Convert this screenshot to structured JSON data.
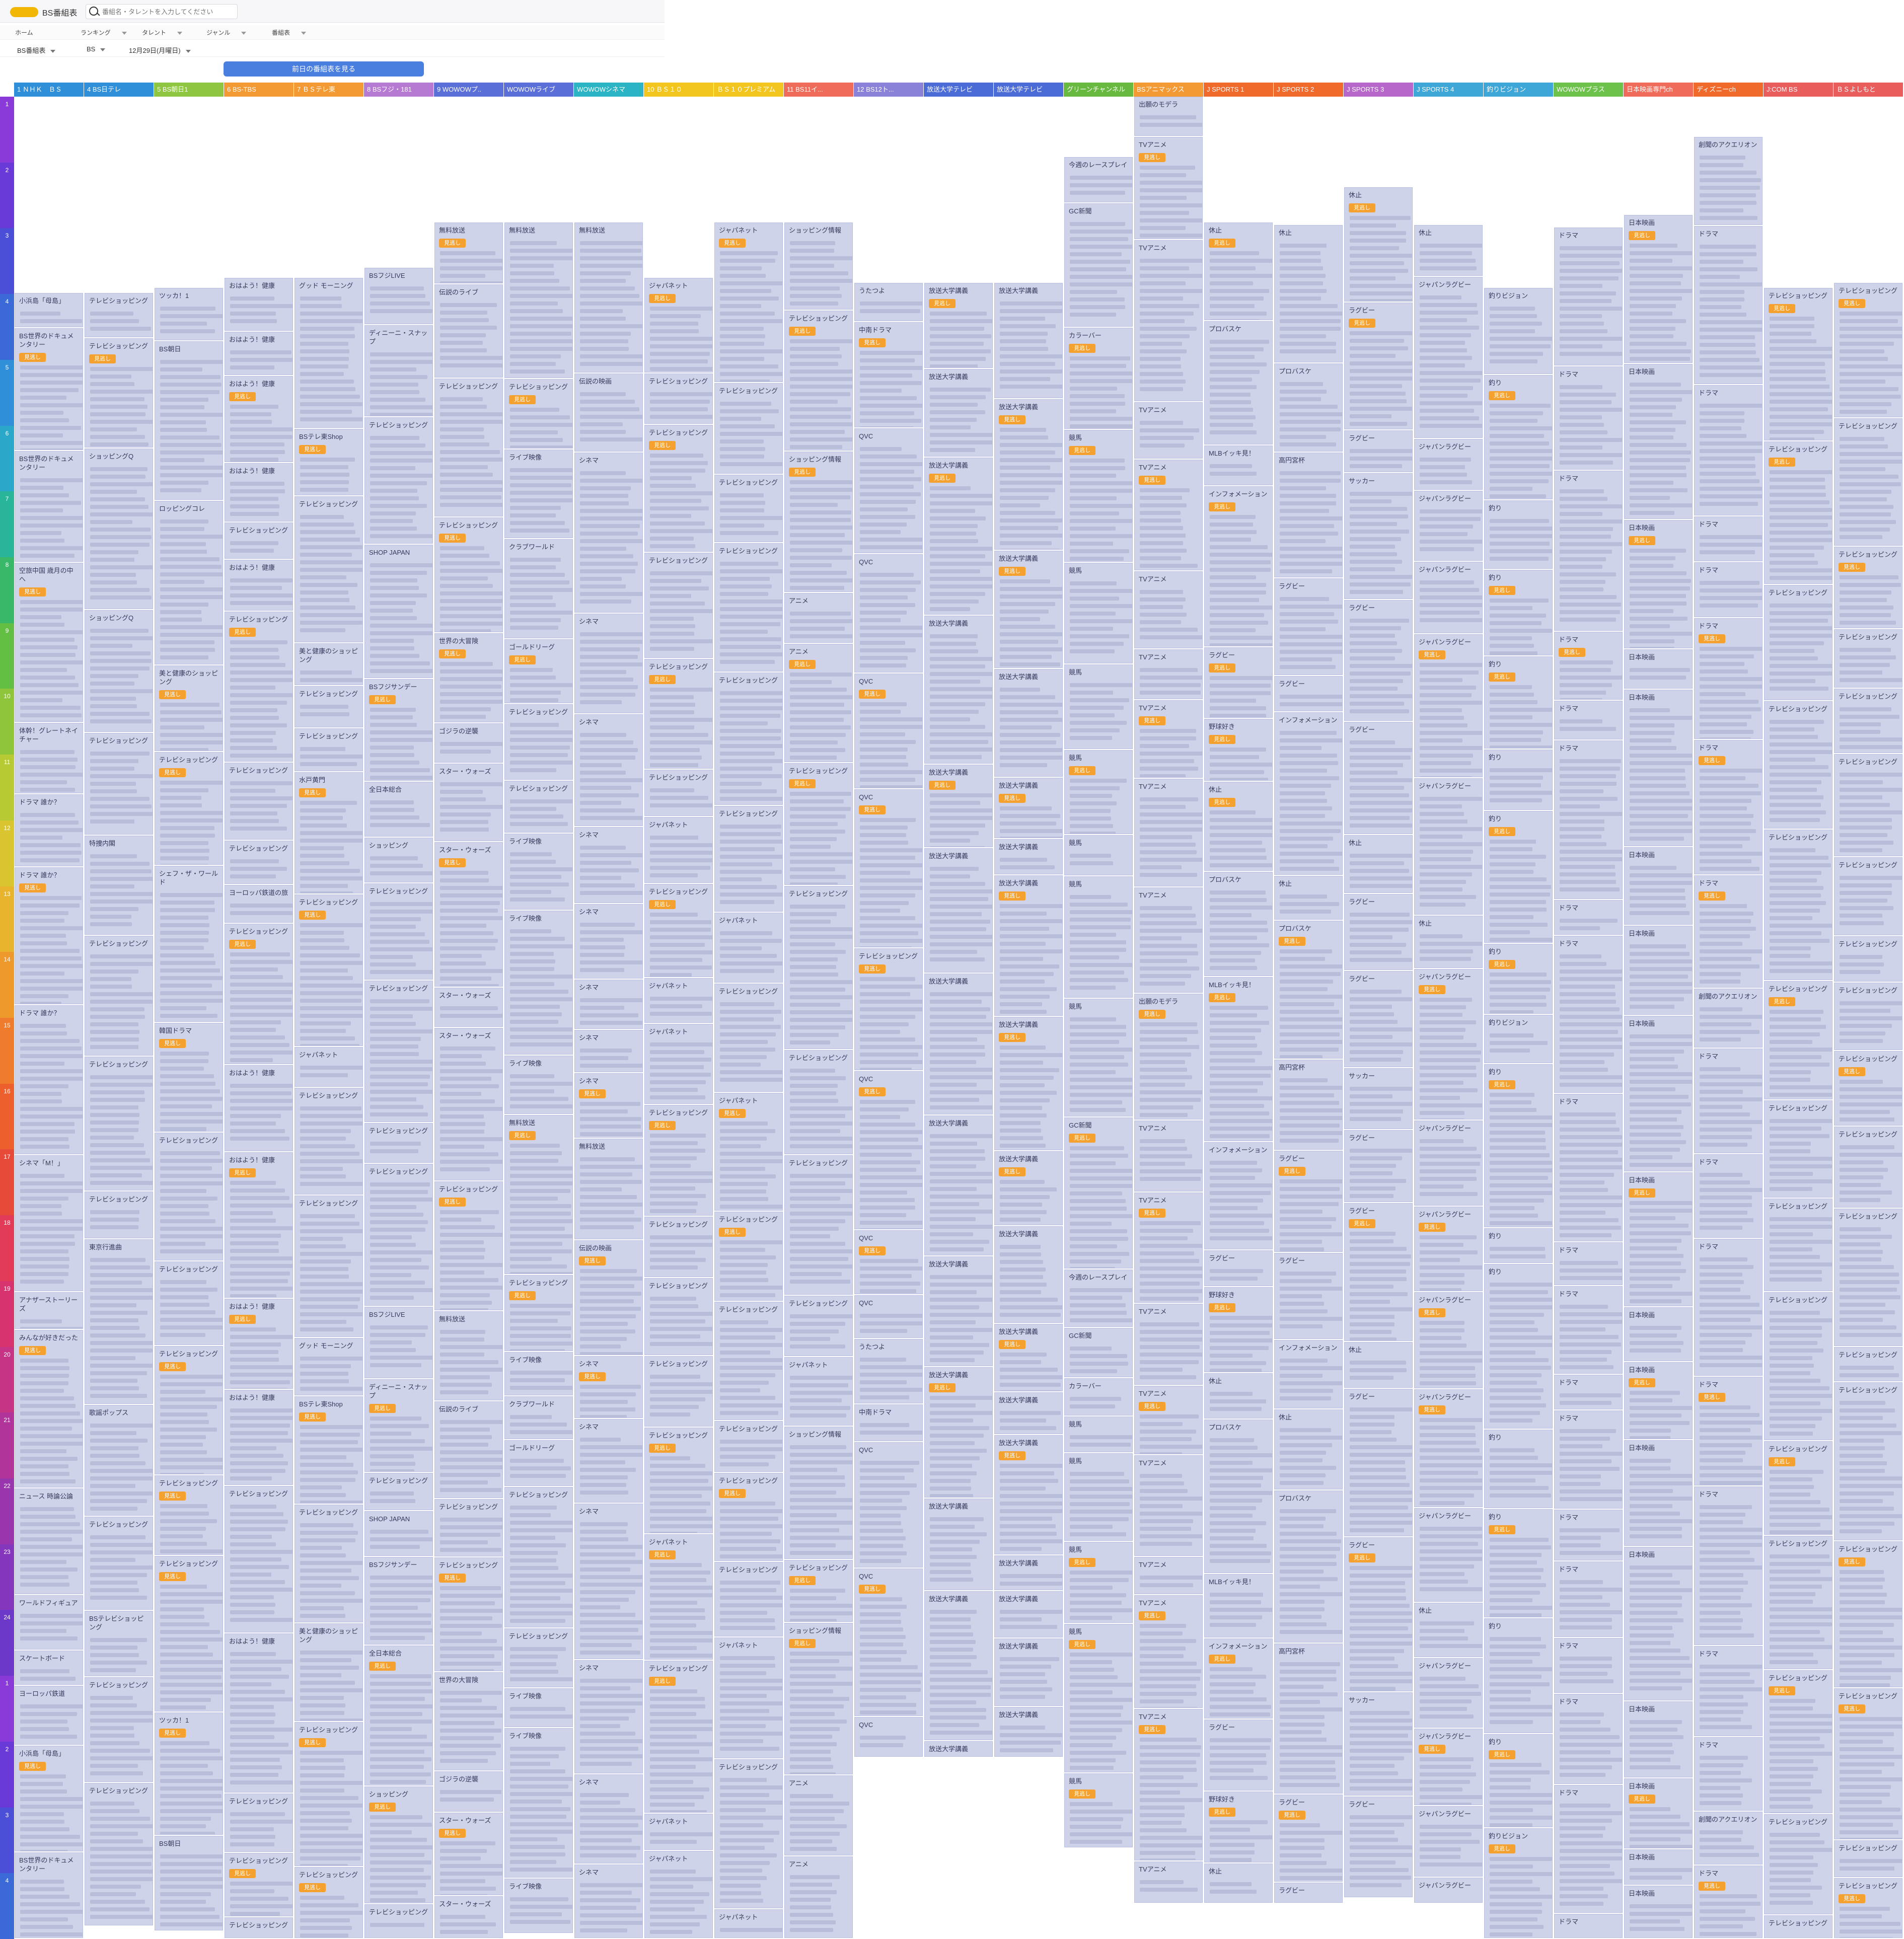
{
  "header": {
    "brand": "BS番組表",
    "search_placeholder": "番組名・タレントを入力してください"
  },
  "nav": [
    "ホーム",
    "ランキング",
    "タレント",
    "ジャンル",
    "番組表"
  ],
  "filters": {
    "type": "BS番組表",
    "band": "BS",
    "date": "12月29日(月曜日)"
  },
  "prev_button": "前日の番組表を見る",
  "colors": {
    "program_bg": "#cfd3ea",
    "accent": "#4a7fdf",
    "tag": "#f4a12f"
  },
  "channels": [
    {
      "label": "1 ＮＨＫ　ＢＳ",
      "color": "#2f8fd8"
    },
    {
      "label": "4 BS日テレ",
      "color": "#2f8fd8"
    },
    {
      "label": "5 BS朝日1",
      "color": "#8ec641"
    },
    {
      "label": "6 BS-TBS",
      "color": "#f39a34"
    },
    {
      "label": "7 ＢＳテレ東",
      "color": "#f39a34"
    },
    {
      "label": "8 BSフジ・181",
      "color": "#b67ad3"
    },
    {
      "label": "9 WOWOWプ..",
      "color": "#5b6fd8"
    },
    {
      "label": "WOWOWライブ",
      "color": "#5b6fd8"
    },
    {
      "label": "WOWOWシネマ",
      "color": "#2bb5c4"
    },
    {
      "label": "10 ＢＳ１０",
      "color": "#f2c61e"
    },
    {
      "label": "ＢＳ１０プレミアム",
      "color": "#f2c61e"
    },
    {
      "label": "11 BS11イ...",
      "color": "#ef6c5a"
    },
    {
      "label": "12 BS12ト...",
      "color": "#8a82d8"
    },
    {
      "label": "放送大学テレビ",
      "color": "#4b6bd6"
    },
    {
      "label": "放送大学テレビ",
      "color": "#4b6bd6"
    },
    {
      "label": "グリーンチャンネル",
      "color": "#67b93f"
    },
    {
      "label": "BSアニマックス",
      "color": "#f39a34"
    },
    {
      "label": "J SPORTS 1",
      "color": "#f06a2c"
    },
    {
      "label": "J SPORTS 2",
      "color": "#f06a2c"
    },
    {
      "label": "J SPORTS 3",
      "color": "#b667c9"
    },
    {
      "label": "J SPORTS 4",
      "color": "#3fa6d8"
    },
    {
      "label": "釣りビジョン",
      "color": "#3fa6d8"
    },
    {
      "label": "WOWOWプラス",
      "color": "#6cc24a"
    },
    {
      "label": "日本映画専門ch",
      "color": "#ef6c5a"
    },
    {
      "label": "ディズニーch",
      "color": "#f06a2c"
    },
    {
      "label": "J:COM BS",
      "color": "#ea5d5d"
    },
    {
      "label": "ＢＳよしもと",
      "color": "#ea5d5d"
    }
  ],
  "hours": [
    "1",
    "2",
    "3",
    "4",
    "5",
    "6",
    "7",
    "8",
    "9",
    "10",
    "11",
    "12",
    "13",
    "14",
    "15",
    "16",
    "17",
    "18",
    "19",
    "20",
    "21",
    "22",
    "23",
    "24",
    "1",
    "2",
    "3",
    "4"
  ],
  "column_programs": [
    [
      "小浜島「母島」",
      "BS世界のドキュメンタリー",
      "BS世界のドキュメンタリー",
      "空旅中国 歳月の中へ",
      "体幹！グレートネイチャー",
      "ドラマ 誰か？",
      "ドラマ 誰か？",
      "ドラマ 誰か？",
      "シネマ「M！」",
      "アナザーストーリーズ",
      "みんなが好きだった",
      "ニュース 時論公論",
      "ワールドフィギュア",
      "スケートボード",
      "ヨーロッパ鉄道"
    ],
    [
      "テレビショッピング",
      "テレビショッピング",
      "ショッピングQ",
      "ショッピングQ",
      "テレビショッピング",
      "特捜内閣",
      "テレビショッピング",
      "テレビショッピング",
      "テレビショッピング",
      "東京行進曲",
      "歌謡ポップス",
      "テレビショッピング",
      "BSテレビショッピング"
    ],
    [
      "ツッカ！1",
      "BS朝日",
      "ロッピングコレ",
      "美と健康のショッピング",
      "テレビショッピング",
      "シェフ・ザ・ワールド",
      "韓国ドラマ",
      "テレビショッピング",
      "テレビショッピング",
      "テレビショッピング",
      "テレビショッピング",
      "テレビショッピング"
    ],
    [
      "おはよう！健康",
      "おはよう！健康",
      "おはよう！健康",
      "おはよう！健康",
      "テレビショッピング",
      "おはよう！健康",
      "テレビショッピング",
      "テレビショッピング",
      "テレビショッピング",
      "ヨーロッパ鉄道の旅",
      "テレビショッピング"
    ],
    [
      "グッド モーニング",
      "BSテレ東Shop",
      "テレビショッピング",
      "美と健康のショッピング",
      "テレビショッピング",
      "テレビショッピング",
      "水戸黄門",
      "テレビショッピング",
      "ジャパネット",
      "テレビショッピング",
      "テレビショッピング"
    ],
    [
      "BSフジLIVE",
      "ディニーニ・スナップ",
      "テレビショッピング",
      "SHOP JAPAN",
      "BSフジサンデー",
      "全日本総合",
      "ショッピング",
      "テレビショッピング",
      "テレビショッピング",
      "テレビショッピング",
      "テレビショッピング"
    ],
    [
      "無料放送",
      "伝説のライブ",
      "テレビショッピング",
      "テレビショッピング",
      "世界の大冒険",
      "ゴジラの逆襲",
      "スター・ウォーズ",
      "スター・ウォーズ",
      "スター・ウォーズ",
      "スター・ウォーズ",
      "テレビショッピング"
    ],
    [
      "無料放送",
      "テレビショッピング",
      "ライブ映像",
      "クラブワールド",
      "ゴールドリーグ",
      "テレビショッピング",
      "テレビショッピング",
      "ライブ映像",
      "ライブ映像",
      "ライブ映像"
    ],
    [
      "無料放送",
      "伝説の映画",
      "シネマ",
      "シネマ",
      "シネマ",
      "シネマ",
      "シネマ",
      "シネマ",
      "シネマ",
      "シネマ"
    ],
    [
      "ジャパネット",
      "テレビショッピング",
      "テレビショッピング",
      "テレビショッピング",
      "テレビショッピング",
      "テレビショッピング",
      "ジャパネット",
      "テレビショッピング",
      "ジャパネット"
    ],
    [
      "ジャパネット",
      "テレビショッピング",
      "テレビショッピング",
      "テレビショッピング",
      "テレビショッピング",
      "テレビショッピング",
      "ジャパネット",
      "テレビショッピング"
    ],
    [
      "ショッピング情報",
      "テレビショッピング",
      "ショッピング情報",
      "アニメ",
      "アニメ",
      "テレビショッピング",
      "テレビショッピング",
      "テレビショッピング",
      "テレビショッピング",
      "テレビショッピング",
      "ジャパネット"
    ],
    [
      "うたつよ",
      "中南ドラマ",
      "QVC",
      "QVC",
      "QVC",
      "QVC",
      "テレビショッピング",
      "QVC",
      "QVC",
      "QVC"
    ],
    [
      "放送大学講義",
      "放送大学講義",
      "放送大学講義",
      "放送大学講義",
      "放送大学講義",
      "放送大学講義",
      "放送大学講義",
      "放送大学講義",
      "放送大学講義"
    ],
    [
      "放送大学講義",
      "放送大学講義",
      "放送大学講義",
      "放送大学講義",
      "放送大学講義",
      "放送大学講義",
      "放送大学講義",
      "放送大学講義"
    ],
    [
      "今週のレースプレイ",
      "GC新聞",
      "カラーバー",
      "競馬",
      "競馬",
      "競馬",
      "競馬",
      "競馬",
      "競馬",
      "競馬",
      "GC新聞"
    ],
    [
      "出願のモデラ",
      "TVアニメ",
      "TVアニメ",
      "TVアニメ",
      "TVアニメ",
      "TVアニメ",
      "TVアニメ",
      "TVアニメ",
      "TVアニメ",
      "TVアニメ"
    ],
    [
      "休止",
      "プロバスケ",
      "MLBイッキ見！",
      "インフォメーション",
      "ラグビー",
      "野球好き"
    ],
    [
      "休止",
      "プロバスケ",
      "高円宮杯",
      "ラグビー",
      "ラグビー",
      "インフォメーション"
    ],
    [
      "休止",
      "ラグビー",
      "ラグビー",
      "サッカー",
      "ラグビー",
      "ラグビー"
    ],
    [
      "休止",
      "ジャパンラグビー",
      "ジャパンラグビー",
      "ジャパンラグビー",
      "ジャパンラグビー",
      "ジャパンラグビー",
      "ジャパンラグビー"
    ],
    [
      "釣りビジョン",
      "釣り",
      "釣り",
      "釣り",
      "釣り",
      "釣り",
      "釣り",
      "釣り"
    ],
    [
      "ドラマ",
      "ドラマ",
      "ドラマ",
      "ドラマ",
      "ドラマ",
      "ドラマ",
      "ドラマ",
      "ドラマ"
    ],
    [
      "日本映画",
      "日本映画",
      "日本映画",
      "日本映画",
      "日本映画",
      "日本映画",
      "日本映画"
    ],
    [
      "創聞のアクエリオン",
      "ドラマ",
      "ドラマ",
      "ドラマ",
      "ドラマ",
      "ドラマ",
      "ドラマ",
      "ドラマ"
    ],
    [
      "テレビショッピング",
      "テレビショッピング",
      "テレビショッピング",
      "テレビショッピング",
      "テレビショッピング",
      "テレビショッピング",
      "テレビショッピング",
      "テレビショッピング",
      "テレビショッピング"
    ],
    [
      "テレビショッピング",
      "テレビショッピング",
      "テレビショッピング",
      "テレビショッピング",
      "テレビショッピング",
      "テレビショッピング",
      "テレビショッピング",
      "テレビショッピング",
      "テレビショッピング"
    ]
  ],
  "tag_label": "見逃し"
}
